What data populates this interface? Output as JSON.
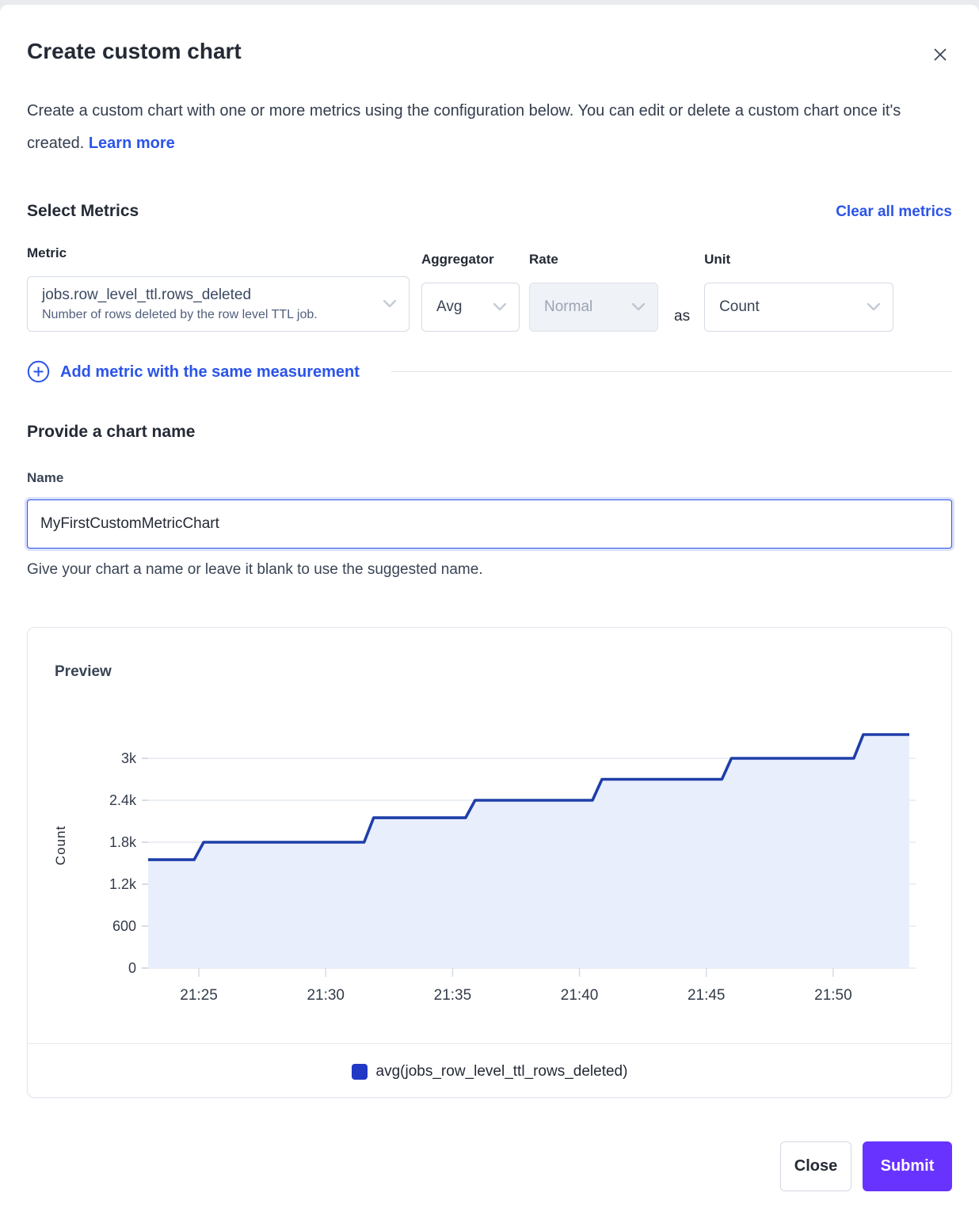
{
  "modal": {
    "title": "Create custom chart",
    "description": "Create a custom chart with one or more metrics using the configuration below. You can edit or delete a custom chart once it's created.",
    "learn_more_label": "Learn more"
  },
  "metrics_section": {
    "heading": "Select Metrics",
    "clear_all_label": "Clear all metrics",
    "metric_label": "Metric",
    "metric_value": "jobs.row_level_ttl.rows_deleted",
    "metric_description": "Number of rows deleted by the row level TTL job.",
    "aggregator_label": "Aggregator",
    "aggregator_value": "Avg",
    "rate_label": "Rate",
    "rate_value": "Normal",
    "rate_disabled": true,
    "as_text": "as",
    "unit_label": "Unit",
    "unit_value": "Count",
    "add_metric_label": "Add metric with the same measurement"
  },
  "name_section": {
    "heading": "Provide a chart name",
    "label": "Name",
    "value": "MyFirstCustomMetricChart",
    "helper": "Give your chart a name or leave it blank to use the suggested name."
  },
  "preview": {
    "heading": "Preview"
  },
  "chart_data": {
    "type": "area",
    "subtype": "step",
    "title": "Preview",
    "xlabel": "",
    "ylabel": "Count",
    "grid": true,
    "legend_position": "bottom",
    "ylim": [
      0,
      3510
    ],
    "y_ticks": [
      {
        "v": 0,
        "label": "0"
      },
      {
        "v": 600,
        "label": "600"
      },
      {
        "v": 1200,
        "label": "1.2k"
      },
      {
        "v": 1800,
        "label": "1.8k"
      },
      {
        "v": 2400,
        "label": "2.4k"
      },
      {
        "v": 3000,
        "label": "3k"
      }
    ],
    "x_range_minutes": [
      0,
      30
    ],
    "x_ticks": [
      {
        "t": 2,
        "label": "21:25"
      },
      {
        "t": 7,
        "label": "21:30"
      },
      {
        "t": 12,
        "label": "21:35"
      },
      {
        "t": 17,
        "label": "21:40"
      },
      {
        "t": 22,
        "label": "21:45"
      },
      {
        "t": 27,
        "label": "21:50"
      }
    ],
    "series": [
      {
        "name": "avg(jobs_row_level_ttl_rows_deleted)",
        "line_color": "#1e3ea9",
        "fill_color": "#e8eefb",
        "swatch_color": "#2138c4",
        "step_points": [
          {
            "t": 0,
            "v": 1550
          },
          {
            "t": 2.0,
            "v": 1800
          },
          {
            "t": 8.7,
            "v": 2150
          },
          {
            "t": 12.7,
            "v": 2400
          },
          {
            "t": 17.7,
            "v": 2700
          },
          {
            "t": 22.8,
            "v": 3000
          },
          {
            "t": 28.0,
            "v": 3340
          }
        ],
        "t_end": 30
      }
    ]
  },
  "footer": {
    "close_label": "Close",
    "submit_label": "Submit"
  },
  "colors": {
    "link": "#2b54e8",
    "primary_button": "#6933ff",
    "grid_line": "#e4e8ef",
    "tick_mark": "#d8dde5",
    "axis_text": "#333b49"
  }
}
